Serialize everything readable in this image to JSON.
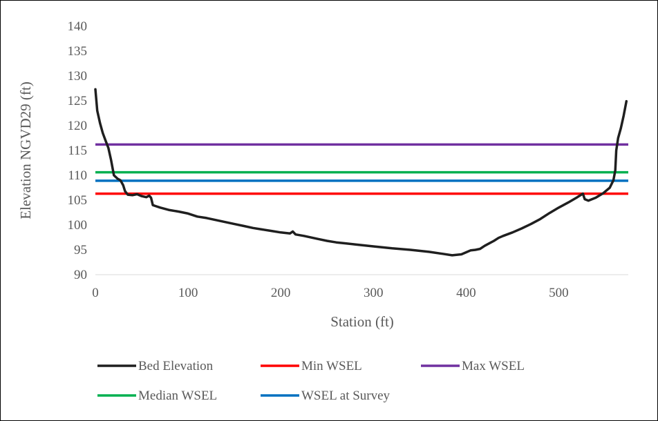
{
  "chart_data": {
    "type": "line",
    "title": "",
    "xlabel": "Station (ft)",
    "ylabel": "Elevation NGVD29 (ft)",
    "xlim": [
      0,
      575
    ],
    "ylim": [
      90,
      140
    ],
    "x_ticks": [
      "0",
      "100",
      "200",
      "300",
      "400",
      "500"
    ],
    "y_ticks": [
      "90",
      "95",
      "100",
      "105",
      "110",
      "115",
      "120",
      "125",
      "130",
      "135",
      "140"
    ],
    "grid": false,
    "legend": "bottom",
    "series": [
      {
        "name": "Bed Elevation",
        "color": "#1f1f1f",
        "points": [
          [
            0,
            127.3
          ],
          [
            2,
            123.0
          ],
          [
            5,
            120.5
          ],
          [
            8,
            118.5
          ],
          [
            11,
            117.0
          ],
          [
            14,
            115.5
          ],
          [
            17,
            113.0
          ],
          [
            20,
            110.0
          ],
          [
            24,
            109.3
          ],
          [
            27,
            109.0
          ],
          [
            30,
            108.0
          ],
          [
            32,
            106.8
          ],
          [
            35,
            106.1
          ],
          [
            40,
            106.0
          ],
          [
            45,
            106.2
          ],
          [
            50,
            105.8
          ],
          [
            55,
            105.6
          ],
          [
            58,
            105.9
          ],
          [
            60,
            105.5
          ],
          [
            62,
            104.0
          ],
          [
            65,
            103.8
          ],
          [
            70,
            103.5
          ],
          [
            80,
            103.0
          ],
          [
            90,
            102.7
          ],
          [
            100,
            102.3
          ],
          [
            110,
            101.7
          ],
          [
            120,
            101.4
          ],
          [
            130,
            101.0
          ],
          [
            140,
            100.6
          ],
          [
            150,
            100.2
          ],
          [
            160,
            99.8
          ],
          [
            170,
            99.4
          ],
          [
            180,
            99.1
          ],
          [
            190,
            98.8
          ],
          [
            200,
            98.5
          ],
          [
            210,
            98.3
          ],
          [
            213,
            98.7
          ],
          [
            216,
            98.1
          ],
          [
            225,
            97.8
          ],
          [
            240,
            97.2
          ],
          [
            250,
            96.8
          ],
          [
            260,
            96.5
          ],
          [
            270,
            96.3
          ],
          [
            280,
            96.1
          ],
          [
            300,
            95.7
          ],
          [
            320,
            95.3
          ],
          [
            340,
            95.0
          ],
          [
            360,
            94.6
          ],
          [
            375,
            94.2
          ],
          [
            385,
            93.9
          ],
          [
            395,
            94.1
          ],
          [
            400,
            94.5
          ],
          [
            405,
            94.9
          ],
          [
            410,
            95.0
          ],
          [
            415,
            95.2
          ],
          [
            420,
            95.8
          ],
          [
            425,
            96.3
          ],
          [
            430,
            96.8
          ],
          [
            435,
            97.4
          ],
          [
            440,
            97.8
          ],
          [
            450,
            98.5
          ],
          [
            460,
            99.3
          ],
          [
            470,
            100.2
          ],
          [
            480,
            101.2
          ],
          [
            490,
            102.4
          ],
          [
            500,
            103.5
          ],
          [
            510,
            104.5
          ],
          [
            520,
            105.6
          ],
          [
            526,
            106.3
          ],
          [
            528,
            105.2
          ],
          [
            532,
            104.9
          ],
          [
            540,
            105.5
          ],
          [
            548,
            106.4
          ],
          [
            555,
            107.5
          ],
          [
            559,
            109.0
          ],
          [
            561,
            111.0
          ],
          [
            562,
            115.0
          ],
          [
            564,
            117.5
          ],
          [
            567,
            119.5
          ],
          [
            570,
            122.0
          ],
          [
            573,
            124.9
          ]
        ]
      },
      {
        "name": "Min WSEL",
        "color": "#ff0000",
        "value": 106.3
      },
      {
        "name": "Max WSEL",
        "color": "#7030a0",
        "value": 116.2
      },
      {
        "name": "Median WSEL",
        "color": "#00b050",
        "value": 110.6
      },
      {
        "name": "WSEL at Survey",
        "color": "#0070c0",
        "value": 108.9
      }
    ]
  }
}
